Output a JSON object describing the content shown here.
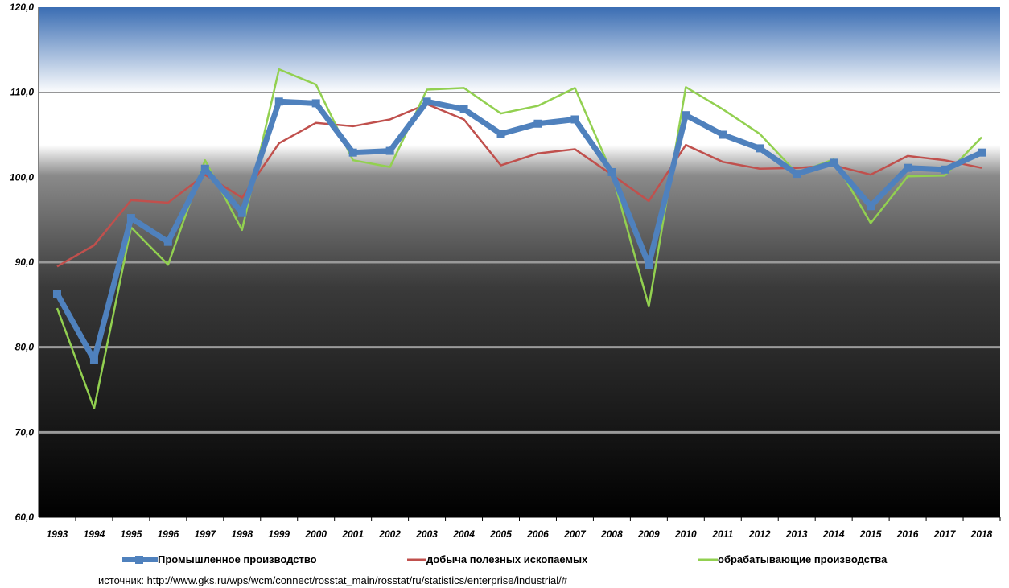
{
  "chart_data": {
    "type": "line",
    "title": "",
    "xlabel": "",
    "ylabel": "",
    "ylim": [
      60,
      120
    ],
    "yticks": [
      "60,0",
      "70,0",
      "80,0",
      "90,0",
      "100,0",
      "110,0",
      "120,0"
    ],
    "categories": [
      "1993",
      "1994",
      "1995",
      "1996",
      "1997",
      "1998",
      "1999",
      "2000",
      "2001",
      "2002",
      "2003",
      "2004",
      "2005",
      "2006",
      "2007",
      "2008",
      "2009",
      "2010",
      "2011",
      "2012",
      "2013",
      "2014",
      "2015",
      "2016",
      "2017",
      "2018"
    ],
    "series": [
      {
        "name": "Промышленное производство",
        "color": "#4f81bd",
        "values": [
          86.3,
          78.5,
          95.2,
          92.4,
          101.0,
          95.8,
          108.9,
          108.7,
          102.9,
          103.1,
          108.9,
          108.0,
          105.1,
          106.3,
          106.8,
          100.6,
          89.7,
          107.3,
          105.0,
          103.4,
          100.4,
          101.7,
          96.6,
          101.1,
          100.9,
          102.9
        ]
      },
      {
        "name": "добыча полезных ископаемых",
        "color": "#c0504d",
        "values": [
          89.5,
          92.0,
          97.3,
          97.0,
          100.3,
          97.6,
          104.0,
          106.4,
          106.0,
          106.8,
          108.6,
          106.8,
          101.4,
          102.8,
          103.3,
          100.3,
          97.2,
          103.8,
          101.8,
          101.0,
          101.1,
          101.4,
          100.3,
          102.5,
          102.0,
          101.1
        ]
      },
      {
        "name": "обрабатывающие производства",
        "color": "#92d050",
        "values": [
          84.6,
          72.8,
          94.1,
          89.7,
          102.0,
          93.8,
          112.7,
          110.9,
          102.0,
          101.2,
          110.3,
          110.5,
          107.5,
          108.4,
          110.5,
          100.5,
          84.8,
          110.6,
          108.0,
          105.1,
          100.5,
          102.1,
          94.6,
          100.1,
          100.2,
          104.7
        ]
      }
    ],
    "legend_position": "bottom",
    "grid": true
  },
  "source": "источник: http://www.gks.ru/wps/wcm/connect/rosstat_main/rosstat/ru/statistics/enterprise/industrial/#"
}
